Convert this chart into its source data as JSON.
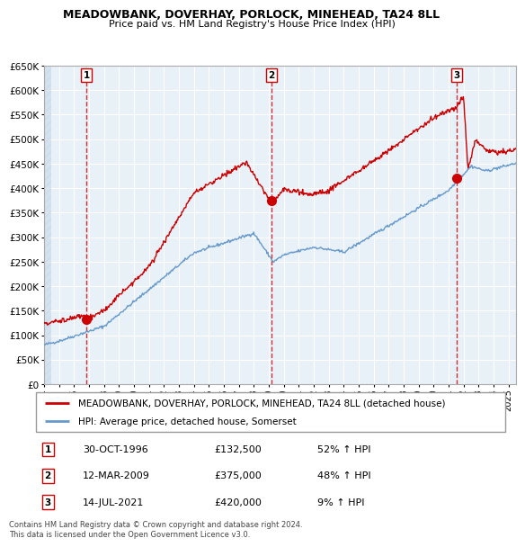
{
  "title": "MEADOWBANK, DOVERHAY, PORLOCK, MINEHEAD, TA24 8LL",
  "subtitle": "Price paid vs. HM Land Registry's House Price Index (HPI)",
  "legend_line1": "MEADOWBANK, DOVERHAY, PORLOCK, MINEHEAD, TA24 8LL (detached house)",
  "legend_line2": "HPI: Average price, detached house, Somerset",
  "table_rows": [
    {
      "num": "1",
      "date": "30-OCT-1996",
      "price": "£132,500",
      "hpi": "52% ↑ HPI"
    },
    {
      "num": "2",
      "date": "12-MAR-2009",
      "price": "£375,000",
      "hpi": "48% ↑ HPI"
    },
    {
      "num": "3",
      "date": "14-JUL-2021",
      "price": "£420,000",
      "hpi": "9% ↑ HPI"
    }
  ],
  "footer": "Contains HM Land Registry data © Crown copyright and database right 2024.\nThis data is licensed under the Open Government Licence v3.0.",
  "red_color": "#cc0000",
  "blue_color": "#6699cc",
  "plot_bg": "#e8f0f8",
  "hatch_color": "#c8d8e8",
  "grid_color": "#ffffff",
  "ylim": [
    0,
    650000
  ],
  "yticks": [
    0,
    50000,
    100000,
    150000,
    200000,
    250000,
    300000,
    350000,
    400000,
    450000,
    500000,
    550000,
    600000,
    650000
  ],
  "sale_points": [
    {
      "year": 1996.83,
      "price": 132500,
      "label": "1"
    },
    {
      "year": 2009.19,
      "price": 375000,
      "label": "2"
    },
    {
      "year": 2021.53,
      "price": 420000,
      "label": "3"
    }
  ],
  "vline_years": [
    1996.83,
    2009.19,
    2021.53
  ],
  "xlim_start": 1994.0,
  "xlim_end": 2025.5
}
